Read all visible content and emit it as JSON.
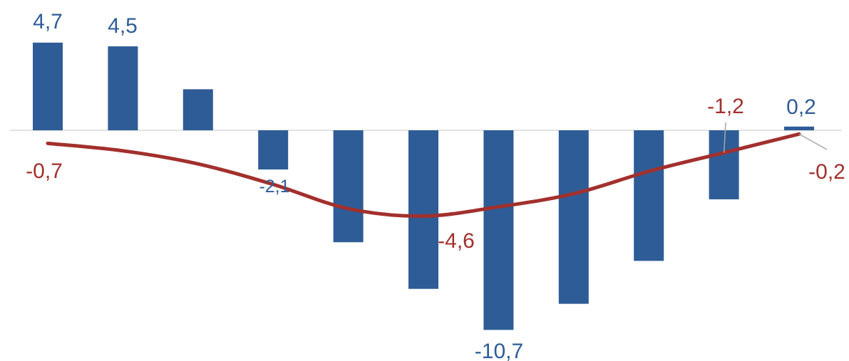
{
  "chart_data": {
    "type": "bar",
    "categories": [
      "",
      "",
      "",
      "",
      "",
      "",
      "",
      "",
      "",
      "",
      ""
    ],
    "series": [
      {
        "type": "bar",
        "values": [
          4.7,
          4.5,
          2.2,
          -2.1,
          -6.0,
          -8.5,
          -10.7,
          -9.3,
          -7.0,
          -3.7,
          0.2
        ],
        "labels": [
          "4,7",
          "4,5",
          "",
          "-2,1",
          "",
          "",
          "-10,7",
          "",
          "",
          "",
          "0,2"
        ]
      },
      {
        "type": "line",
        "values": [
          -0.7,
          -1.1,
          -1.8,
          -2.9,
          -4.2,
          -4.6,
          -4.1,
          -3.4,
          -2.2,
          -1.2,
          -0.2
        ],
        "labels": [
          "-0,7",
          "",
          "",
          "",
          "",
          "-4,6",
          "",
          "",
          "",
          "-1,2",
          "-0,2"
        ]
      }
    ],
    "ylim": [
      -11.5,
      5.5
    ],
    "grid": false,
    "legend": "none",
    "colors": {
      "bar": "#2e5c97",
      "line": "#a2302d",
      "leader": "#a6a6a6",
      "axis": "#d9d9d9"
    }
  }
}
